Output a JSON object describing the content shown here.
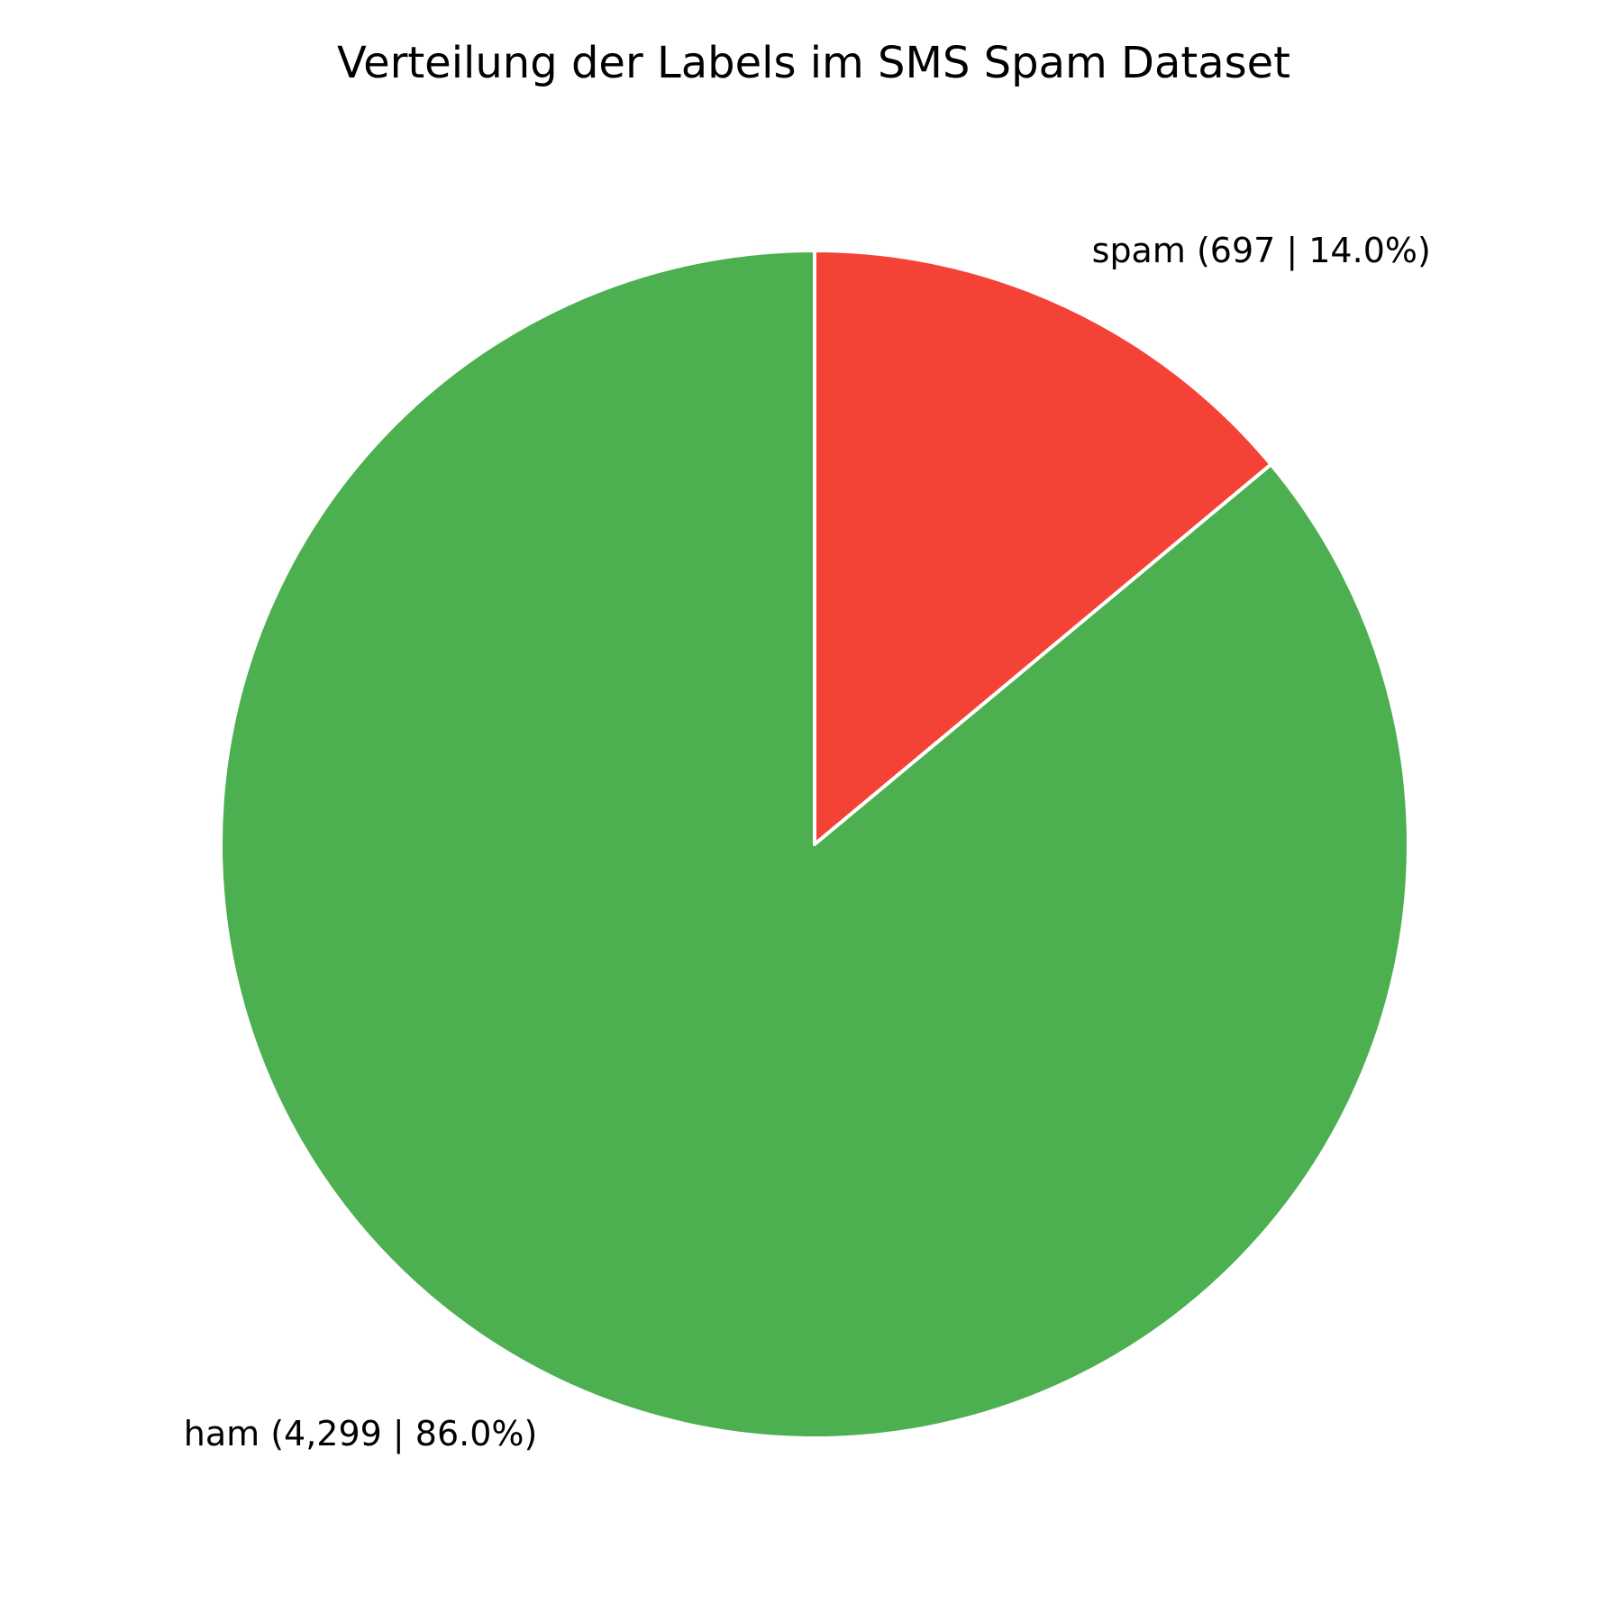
{
  "chart_data": {
    "type": "pie",
    "title": "Verteilung der Labels im SMS Spam Dataset",
    "slices": [
      {
        "label": "spam (697 | 14.0%)",
        "name": "spam",
        "value": 697,
        "percent": 14.0,
        "color": "#F44336"
      },
      {
        "label": "ham (4,299 | 86.0%)",
        "name": "ham",
        "value": 4299,
        "percent": 86.0,
        "color": "#4CAF50"
      }
    ],
    "start": "12 o'clock",
    "direction": "clockwise",
    "edge_color": "#FFFFFF",
    "legend": "none"
  }
}
